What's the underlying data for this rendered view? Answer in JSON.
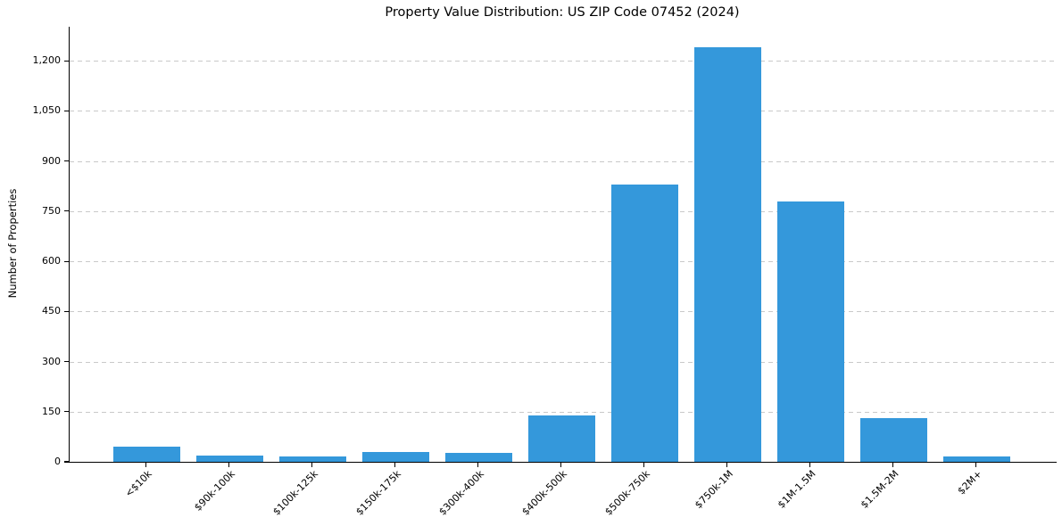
{
  "chart_data": {
    "type": "bar",
    "title": "Property Value Distribution: US ZIP Code 07452 (2024)",
    "xlabel": "",
    "ylabel": "Number of Properties",
    "categories": [
      "<$10k",
      "$90k-100k",
      "$100k-125k",
      "$150k-175k",
      "$300k-400k",
      "$400k-500k",
      "$500k-750k",
      "$750k-1M",
      "$1M-1.5M",
      "$1.5M-2M",
      "$2M+"
    ],
    "values": [
      45,
      18,
      15,
      30,
      27,
      140,
      830,
      1240,
      780,
      130,
      15
    ],
    "yticks": [
      0,
      150,
      300,
      450,
      600,
      750,
      900,
      1050,
      1200
    ],
    "ylim": [
      0,
      1302
    ],
    "bar_color": "#3498db",
    "grid": true,
    "grid_style": "dashed",
    "grid_color": "#c9c9c9",
    "legend": "none"
  }
}
